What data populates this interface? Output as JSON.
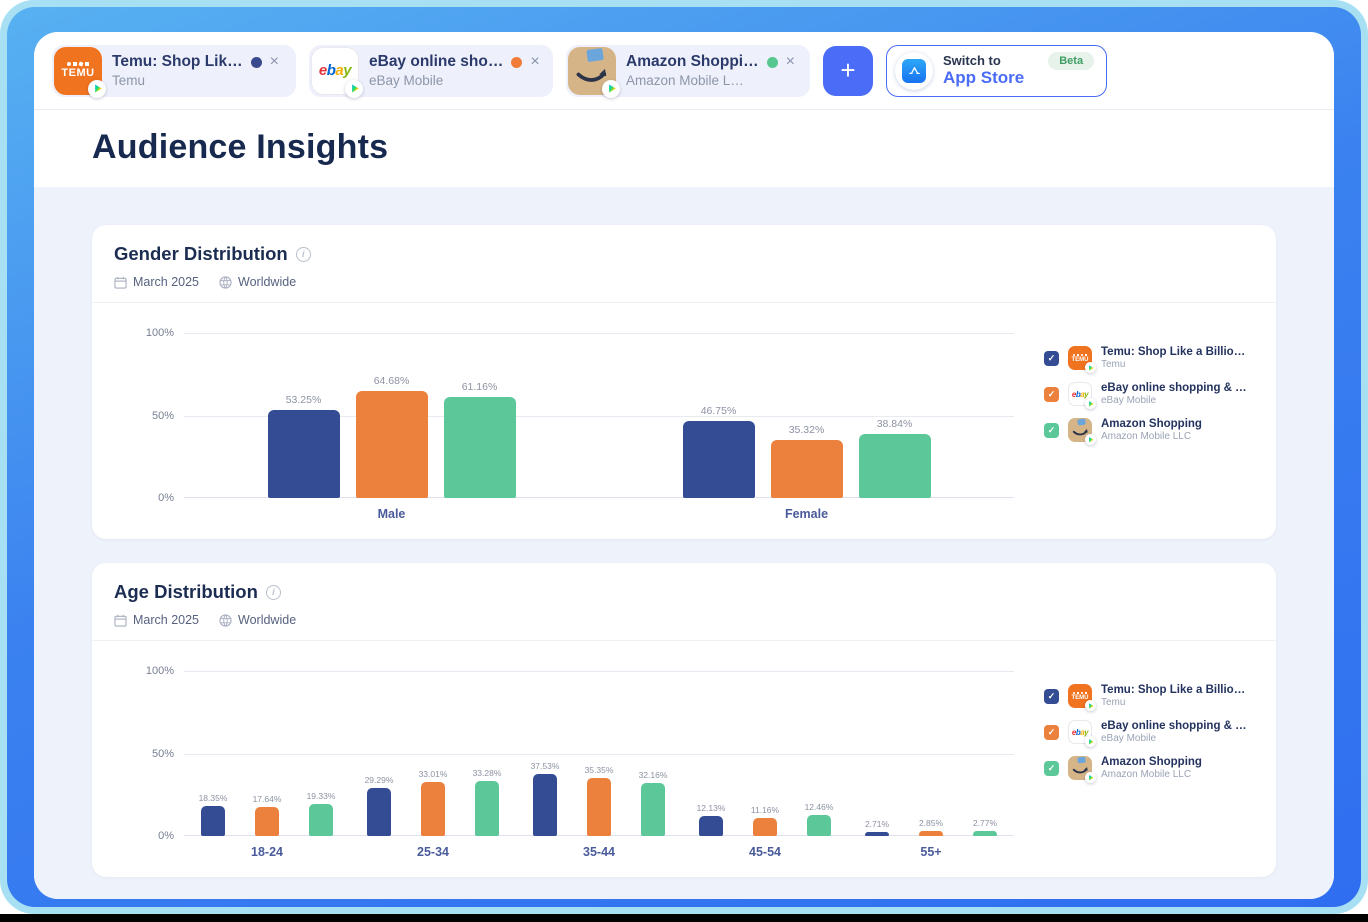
{
  "colors": {
    "accent_blue": "#4a6cf6",
    "series_blue": "#344c94",
    "series_orange": "#ec813e",
    "series_green": "#5cc89a",
    "beta_green": "#3f9e63"
  },
  "tab_bar": {
    "tabs": [
      {
        "id": "temu",
        "title": "Temu: Shop Lik…",
        "subtitle": "Temu",
        "dot_color": "#3a4a8f"
      },
      {
        "id": "ebay",
        "title": "eBay online sho…",
        "subtitle": "eBay Mobile",
        "dot_color": "#f07c38"
      },
      {
        "id": "amazon",
        "title": "Amazon Shoppi…",
        "subtitle": "Amazon Mobile L…",
        "dot_color": "#57c790"
      }
    ],
    "add_label": "+",
    "close_label": "×",
    "switch_button": {
      "line1": "Switch to",
      "line2": "App Store",
      "badge": "Beta"
    }
  },
  "header": {
    "title": "Audience Insights"
  },
  "legend": {
    "items": [
      {
        "id": "temu",
        "name": "Temu: Shop Like a Billio…",
        "publisher": "Temu",
        "color": "#344c94",
        "check": "✓"
      },
      {
        "id": "ebay",
        "name": "eBay online shopping & …",
        "publisher": "eBay Mobile",
        "color": "#ec813e",
        "check": "✓"
      },
      {
        "id": "amazon",
        "name": "Amazon Shopping",
        "publisher": "Amazon Mobile LLC",
        "color": "#5cc89a",
        "check": "✓"
      }
    ]
  },
  "charts": [
    {
      "title": "Gender Distribution",
      "date": "March 2025",
      "region": "Worldwide"
    },
    {
      "title": "Age Distribution",
      "date": "March 2025",
      "region": "Worldwide"
    }
  ],
  "chart_data": [
    {
      "type": "bar",
      "title": "Gender Distribution",
      "categories": [
        "Male",
        "Female"
      ],
      "series": [
        {
          "name": "Temu: Shop Like a Billio…",
          "color": "#344c94",
          "values": [
            53.25,
            46.75
          ]
        },
        {
          "name": "eBay online shopping & …",
          "color": "#ec813e",
          "values": [
            64.68,
            35.32
          ]
        },
        {
          "name": "Amazon Shopping",
          "color": "#5cc89a",
          "values": [
            61.16,
            38.84
          ]
        }
      ],
      "ylabel": "",
      "xlabel": "",
      "ylim": [
        0,
        100
      ],
      "yticks": [
        "100%",
        "50%",
        "0%"
      ],
      "value_label_suffix": "%",
      "grid": true,
      "legend_position": "right"
    },
    {
      "type": "bar",
      "title": "Age Distribution",
      "categories": [
        "18-24",
        "25-34",
        "35-44",
        "45-54",
        "55+"
      ],
      "series": [
        {
          "name": "Temu: Shop Like a Billio…",
          "color": "#344c94",
          "values": [
            18.35,
            29.29,
            37.53,
            12.13,
            2.71
          ]
        },
        {
          "name": "eBay online shopping & …",
          "color": "#ec813e",
          "values": [
            17.64,
            33.01,
            35.35,
            11.16,
            2.85
          ]
        },
        {
          "name": "Amazon Shopping",
          "color": "#5cc89a",
          "values": [
            19.33,
            33.28,
            32.16,
            12.46,
            2.77
          ]
        }
      ],
      "ylabel": "",
      "xlabel": "",
      "ylim": [
        0,
        100
      ],
      "yticks": [
        "100%",
        "50%",
        "0%"
      ],
      "value_label_suffix": "%",
      "grid": true,
      "legend_position": "right"
    }
  ]
}
